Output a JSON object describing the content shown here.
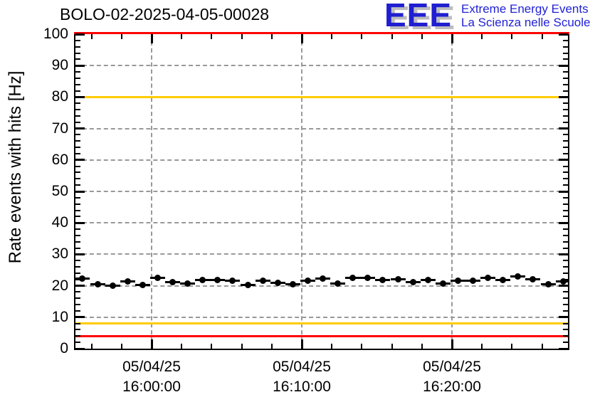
{
  "header": {
    "title": "BOLO-02-2025-04-05-00028",
    "logo": {
      "letters": "EEE",
      "line1": "Extreme Energy Events",
      "line2": "La Scienza nelle Scuole",
      "color": "#1f1fd1"
    }
  },
  "chart_data": {
    "type": "scatter",
    "title": "BOLO-02-2025-04-05-00028",
    "xlabel": "",
    "ylabel": "Rate events with hits [Hz]",
    "ylim": [
      0,
      100
    ],
    "y_major_tick_step": 10,
    "y_minor_tick_step": 2,
    "y_ticks": [
      "0",
      "10",
      "20",
      "30",
      "40",
      "50",
      "60",
      "70",
      "80",
      "90",
      "100"
    ],
    "x_ticks": [
      {
        "t_min": 0,
        "date": "05/04/25",
        "time": "16:00:00"
      },
      {
        "t_min": 10,
        "date": "05/04/25",
        "time": "16:10:00"
      },
      {
        "t_min": 20,
        "date": "05/04/25",
        "time": "16:20:00"
      }
    ],
    "x_minor_tick_step_min": 2,
    "x_range_min_from_1600": [
      -5.1,
      27.8
    ],
    "grid": {
      "h_lines_hz": [
        10,
        20,
        30,
        40,
        50,
        60,
        70,
        80,
        90
      ],
      "v_lines_min": [
        0,
        10,
        20
      ],
      "style": "dashed",
      "color": "#999999"
    },
    "threshold_lines": [
      {
        "hz": 100,
        "color": "#ff0000"
      },
      {
        "hz": 80,
        "color": "#ffcc00"
      },
      {
        "hz": 8,
        "color": "#ffcc00"
      },
      {
        "hz": 4,
        "color": "#ff0000"
      }
    ],
    "series": [
      {
        "name": "rate_events_with_hits",
        "marker": "filled-circle",
        "marker_color": "#000000",
        "error_bar": "horizontal",
        "t_min_from_1600": [
          -4.6,
          -3.6,
          -2.6,
          -1.6,
          -0.6,
          0.4,
          1.4,
          2.4,
          3.4,
          4.4,
          5.4,
          6.4,
          7.4,
          8.4,
          9.4,
          10.4,
          11.4,
          12.4,
          13.4,
          14.4,
          15.4,
          16.4,
          17.4,
          18.4,
          19.4,
          20.4,
          21.4,
          22.4,
          23.4,
          24.4,
          25.4,
          26.4,
          27.4
        ],
        "hz": [
          22.3,
          20.5,
          20.1,
          21.4,
          20.2,
          22.6,
          21.1,
          20.6,
          21.8,
          21.8,
          21.7,
          20.3,
          21.7,
          20.9,
          20.5,
          21.6,
          22.3,
          20.6,
          22.6,
          22.4,
          21.9,
          22.0,
          21.2,
          21.9,
          20.8,
          21.7,
          21.6,
          22.6,
          21.8,
          22.9,
          22.1,
          20.5,
          21.4
        ]
      }
    ]
  }
}
